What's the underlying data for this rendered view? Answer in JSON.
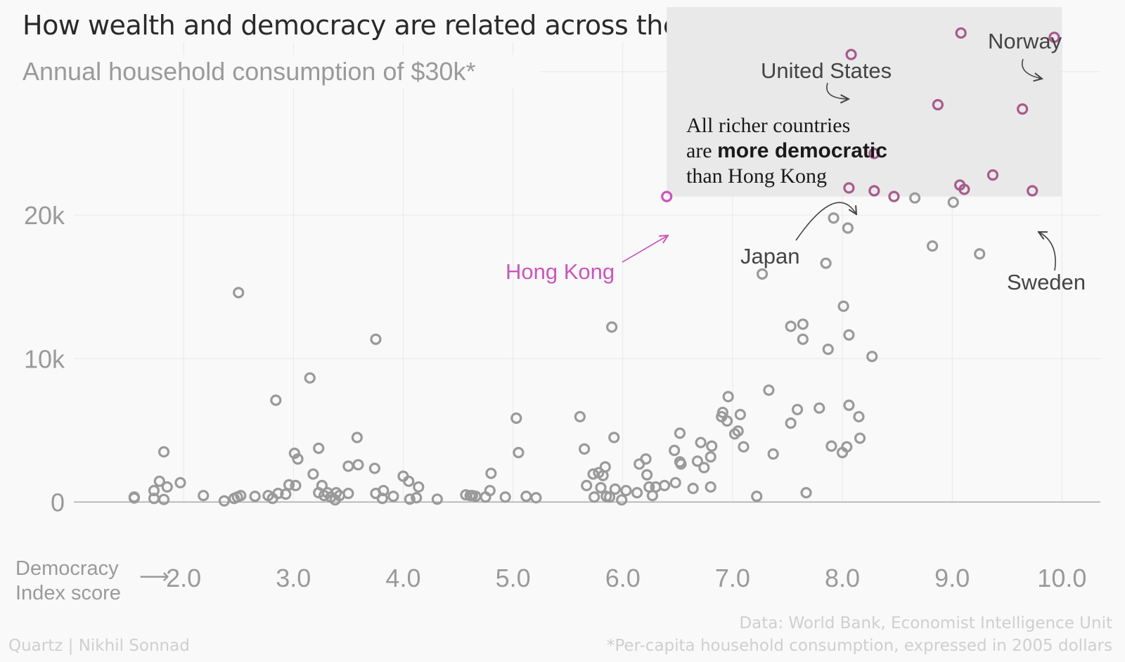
{
  "title": "How wealth and democracy are related across the globe",
  "footer": {
    "credit": "Quartz | Nikhil Sonnad",
    "source": "Data: World Bank, Economist Intelligence Unit",
    "note": "*Per-capita household consumption, expressed in 2005 dollars"
  },
  "colors": {
    "background": "#f9f9f9",
    "point": "#9a9a9a",
    "highlight": "#a85b8c",
    "hongkong": "#cc55bb",
    "region": "#e9e9e9",
    "grid": "#e8e8e8"
  },
  "chart_data": {
    "type": "scatter",
    "xlabel": "Democracy Index score",
    "xlabel_lines": [
      "Democracy",
      "Index score"
    ],
    "x_arrow": "⟶",
    "xlim": [
      1.0,
      10.35
    ],
    "ylim": [
      -1500,
      35000
    ],
    "xticks": [
      2.0,
      3.0,
      4.0,
      5.0,
      6.0,
      7.0,
      8.0,
      9.0,
      10.0
    ],
    "xtick_labels": [
      "2.0",
      "3.0",
      "4.0",
      "5.0",
      "6.0",
      "7.0",
      "8.0",
      "9.0",
      "10.0"
    ],
    "yticks": [
      0,
      10000,
      20000
    ],
    "ytick_labels": [
      "0",
      "10k",
      "20k"
    ],
    "threshold": {
      "value": 30000,
      "label": "Annual household consumption of $30k*"
    },
    "region": {
      "x": [
        6.4,
        10.0
      ],
      "y": [
        21300,
        34500
      ]
    },
    "grid": true,
    "annotation": {
      "lines": [
        [
          {
            "text": "All richer countries",
            "bold": false
          }
        ],
        [
          {
            "text": "are ",
            "bold": false
          },
          {
            "text": "more democratic",
            "bold": true
          }
        ],
        [
          {
            "text": "than Hong Kong",
            "bold": false
          }
        ]
      ]
    },
    "labels": [
      {
        "text": "Norway",
        "color": "#444444"
      },
      {
        "text": "United States",
        "color": "#444444"
      },
      {
        "text": "Hong Kong",
        "color": "#cc55bb"
      },
      {
        "text": "Japan",
        "color": "#444444"
      },
      {
        "text": "Sweden",
        "color": "#444444"
      }
    ],
    "series": [
      {
        "name": "",
        "points": [
          [
            1.55,
            350
          ],
          [
            1.55,
            280
          ],
          [
            1.73,
            800
          ],
          [
            1.73,
            250
          ],
          [
            1.78,
            1450
          ],
          [
            1.82,
            3500
          ],
          [
            1.82,
            180
          ],
          [
            1.85,
            1050
          ],
          [
            1.97,
            1350
          ],
          [
            2.18,
            450
          ],
          [
            2.37,
            80
          ],
          [
            2.46,
            250
          ],
          [
            2.49,
            350
          ],
          [
            2.5,
            14600
          ],
          [
            2.52,
            450
          ],
          [
            2.65,
            400
          ],
          [
            2.77,
            450
          ],
          [
            2.81,
            250
          ],
          [
            2.84,
            7100
          ],
          [
            2.86,
            600
          ],
          [
            2.93,
            550
          ],
          [
            2.96,
            1200
          ],
          [
            3.01,
            3400
          ],
          [
            3.02,
            1150
          ],
          [
            3.04,
            3000
          ],
          [
            3.15,
            8650
          ],
          [
            3.18,
            1950
          ],
          [
            3.23,
            3750
          ],
          [
            3.23,
            650
          ],
          [
            3.26,
            1150
          ],
          [
            3.28,
            450
          ],
          [
            3.31,
            650
          ],
          [
            3.34,
            350
          ],
          [
            3.38,
            150
          ],
          [
            3.39,
            650
          ],
          [
            3.42,
            450
          ],
          [
            3.5,
            600
          ],
          [
            3.5,
            2500
          ],
          [
            3.58,
            4500
          ],
          [
            3.59,
            2600
          ],
          [
            3.74,
            2350
          ],
          [
            3.75,
            11350
          ],
          [
            3.75,
            600
          ],
          [
            3.81,
            250
          ],
          [
            3.82,
            800
          ],
          [
            3.91,
            400
          ],
          [
            4.0,
            1800
          ],
          [
            4.05,
            1450
          ],
          [
            4.06,
            200
          ],
          [
            4.12,
            300
          ],
          [
            4.14,
            1050
          ],
          [
            4.31,
            200
          ],
          [
            4.57,
            500
          ],
          [
            4.61,
            450
          ],
          [
            4.63,
            450
          ],
          [
            4.66,
            400
          ],
          [
            4.75,
            350
          ],
          [
            4.8,
            2000
          ],
          [
            4.79,
            800
          ],
          [
            4.93,
            350
          ],
          [
            5.03,
            5850
          ],
          [
            5.05,
            3450
          ],
          [
            5.12,
            400
          ],
          [
            5.21,
            300
          ],
          [
            5.61,
            5950
          ],
          [
            5.65,
            3700
          ],
          [
            5.67,
            1150
          ],
          [
            5.73,
            1950
          ],
          [
            5.74,
            350
          ],
          [
            5.78,
            2050
          ],
          [
            5.8,
            1000
          ],
          [
            5.82,
            1850
          ],
          [
            5.84,
            2450
          ],
          [
            5.85,
            400
          ],
          [
            5.88,
            350
          ],
          [
            5.9,
            12200
          ],
          [
            5.92,
            4500
          ],
          [
            5.93,
            900
          ],
          [
            5.99,
            150
          ],
          [
            6.03,
            800
          ],
          [
            6.13,
            650
          ],
          [
            6.15,
            2650
          ],
          [
            6.21,
            3000
          ],
          [
            6.22,
            1900
          ],
          [
            6.24,
            1050
          ],
          [
            6.27,
            450
          ],
          [
            6.3,
            1050
          ],
          [
            6.38,
            1150
          ],
          [
            6.47,
            3600
          ],
          [
            6.48,
            1350
          ],
          [
            6.52,
            4800
          ],
          [
            6.52,
            2800
          ],
          [
            6.53,
            2650
          ],
          [
            6.64,
            950
          ],
          [
            6.68,
            2850
          ],
          [
            6.71,
            4150
          ],
          [
            6.74,
            2400
          ],
          [
            6.8,
            3150
          ],
          [
            6.81,
            3900
          ],
          [
            6.8,
            1050
          ],
          [
            6.9,
            5950
          ],
          [
            6.91,
            6250
          ],
          [
            6.95,
            5650
          ],
          [
            6.96,
            7350
          ],
          [
            7.02,
            4750
          ],
          [
            7.05,
            4950
          ],
          [
            7.07,
            6100
          ],
          [
            7.1,
            3850
          ],
          [
            7.22,
            400
          ],
          [
            7.27,
            15900
          ],
          [
            7.33,
            7800
          ],
          [
            7.37,
            3350
          ],
          [
            7.53,
            12250
          ],
          [
            7.53,
            5500
          ],
          [
            7.59,
            6450
          ],
          [
            7.64,
            12400
          ],
          [
            7.64,
            11350
          ],
          [
            7.67,
            650
          ],
          [
            7.79,
            6550
          ],
          [
            7.85,
            16650
          ],
          [
            7.87,
            10650
          ],
          [
            7.9,
            3900
          ],
          [
            7.92,
            19800
          ],
          [
            8.0,
            3450
          ],
          [
            8.01,
            13650
          ],
          [
            8.04,
            3850
          ],
          [
            8.05,
            19100
          ],
          [
            8.06,
            11650
          ],
          [
            8.06,
            6750
          ],
          [
            8.15,
            5950
          ],
          [
            8.16,
            4450
          ],
          [
            8.27,
            10150
          ],
          [
            8.66,
            21200
          ],
          [
            8.82,
            17850
          ],
          [
            9.01,
            20900
          ],
          [
            9.25,
            17300
          ]
        ]
      },
      {
        "name": "",
        "points": [
          [
            8.08,
            31200
          ],
          [
            9.08,
            32700
          ],
          [
            9.93,
            32400
          ],
          [
            8.87,
            27700
          ],
          [
            9.64,
            27400
          ],
          [
            8.29,
            24300
          ],
          [
            9.37,
            22800
          ],
          [
            9.07,
            22100
          ],
          [
            9.11,
            21800
          ],
          [
            8.06,
            21900
          ],
          [
            8.29,
            21700
          ],
          [
            8.47,
            21300
          ],
          [
            9.73,
            21700
          ]
        ]
      },
      {
        "name": "",
        "points": [
          [
            6.4,
            21300
          ]
        ]
      }
    ]
  }
}
